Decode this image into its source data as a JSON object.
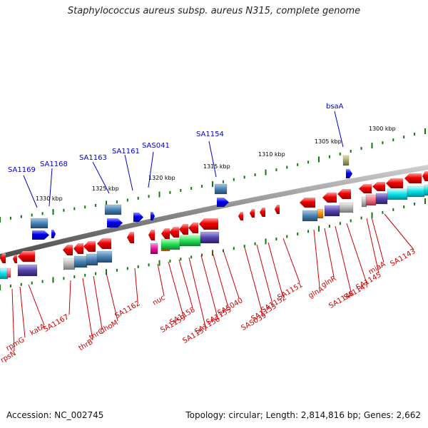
{
  "title": "Staphylococcus aureus subsp. aureus N315, complete genome",
  "footer": {
    "accession": "Accession: NC_002745",
    "summary": "Topology: circular; Length: 2,814,816 bp; Genes: 2,662"
  },
  "scale_labels": [
    "1330 kbp",
    "1325 kbp",
    "1320 kbp",
    "1315 kbp",
    "1310 kbp",
    "1305 kbp",
    "1300 kbp"
  ],
  "top_gene_labels": [
    "SA1169",
    "SA1168",
    "SA1163",
    "SA1161",
    "SAS041",
    "SA1154",
    "bsaA"
  ],
  "bottom_gene_labels": [
    "rpsN",
    "rpmG",
    "katA",
    "SA1167",
    "thrB",
    "thrC",
    "dhoM",
    "SA1162",
    "nuc",
    "SA1159",
    "SA1158",
    "SA1157",
    "SA1156",
    "SA1155",
    "SAS040",
    "SAS039",
    "SA1153",
    "SA1152",
    "SA1151",
    "glnA",
    "glnR",
    "SA1148",
    "SA1147",
    "SA1145",
    "miaA",
    "SA1143"
  ],
  "colors": {
    "backbone": "#8a8a8a",
    "forward_label": "#0000cc",
    "reverse_label": "#cc0000",
    "forward_gene": "#0000ee",
    "reverse_gene": "#ee0000",
    "tick": "#117711"
  }
}
